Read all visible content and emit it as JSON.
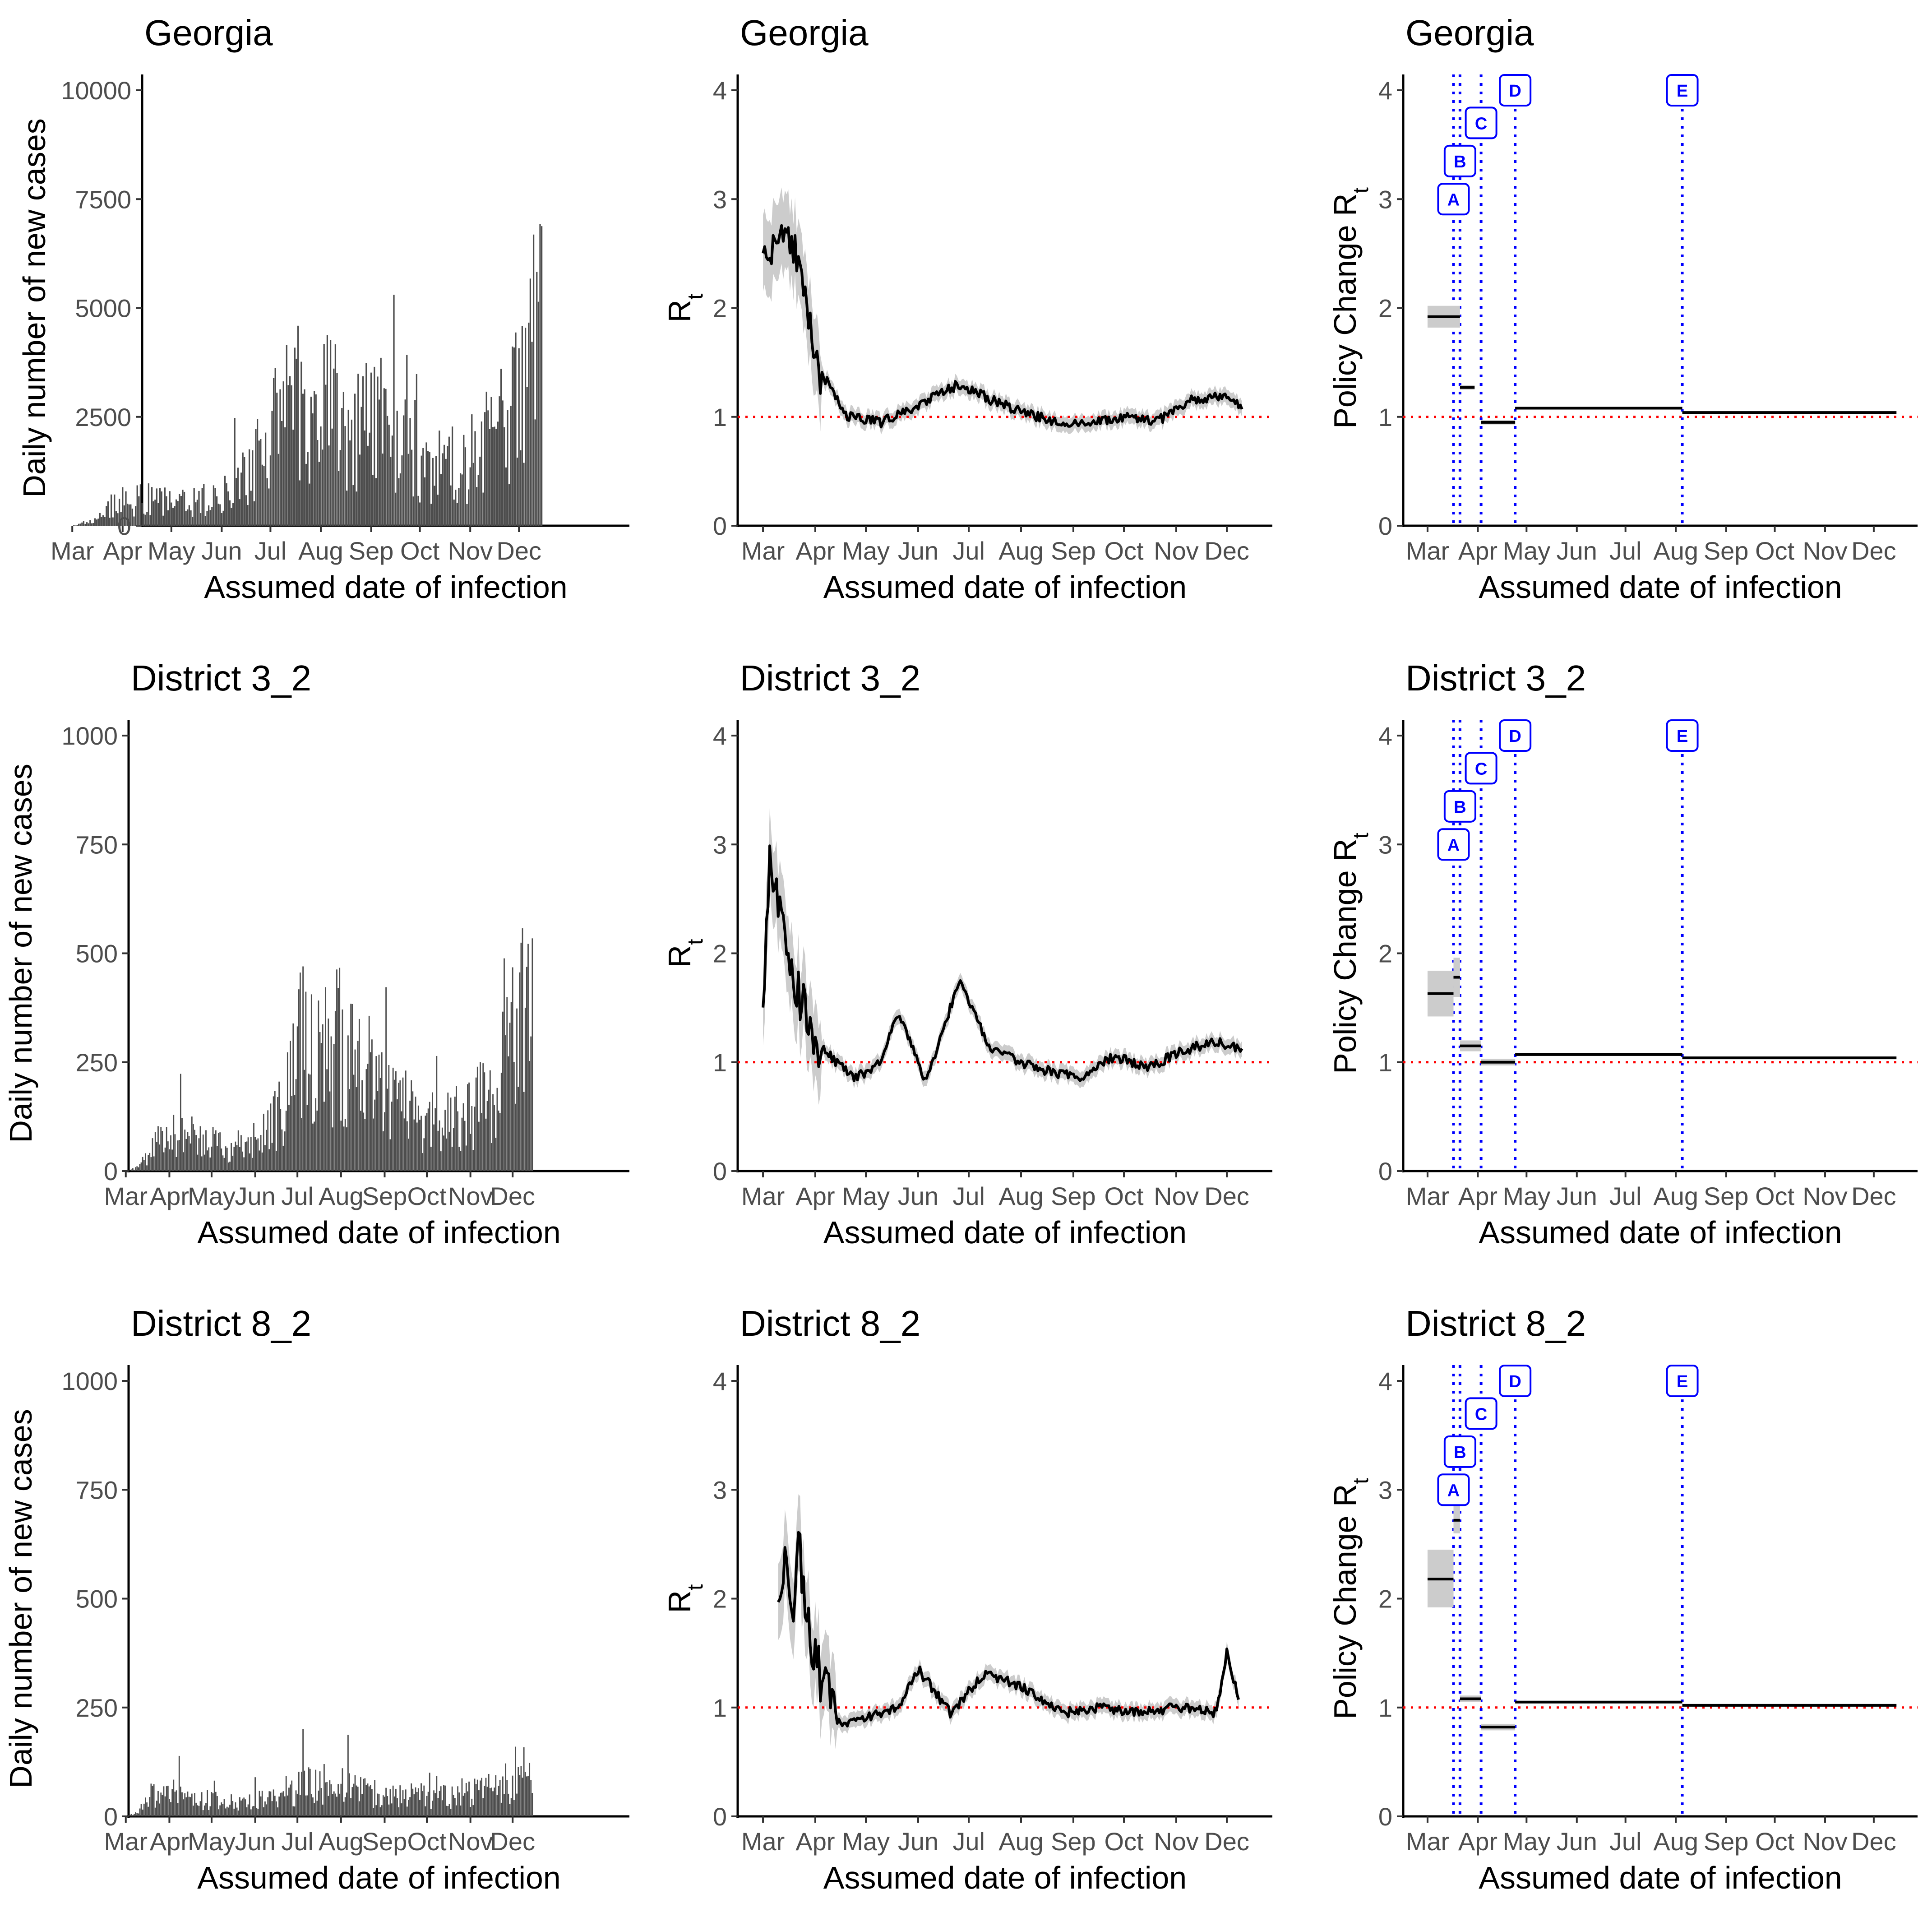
{
  "chart_data": [
    {
      "type": "bar",
      "title": "Georgia",
      "xlabel": "Assumed date of infection",
      "ylabel": "Daily number of new cases",
      "ylim": [
        0,
        10000
      ],
      "yticks": [
        "0",
        "2500",
        "5000",
        "7500",
        "10000"
      ],
      "month_ticks": [
        "Mar",
        "Apr",
        "May",
        "Jun",
        "Jul",
        "Aug",
        "Sep",
        "Oct",
        "Nov",
        "Dec"
      ],
      "series_envelope": {
        "x": [
          "Mar 1",
          "Mar 15",
          "Mar 25",
          "Apr 10",
          "May 1",
          "Jun 1",
          "Jun 20",
          "Jul 5",
          "Jul 25",
          "Aug 15",
          "Sep 15",
          "Oct 10",
          "Nov 1",
          "Nov 20",
          "Dec 5",
          "Dec 15"
        ],
        "values": [
          0,
          150,
          600,
          800,
          650,
          800,
          1800,
          3500,
          3800,
          3200,
          2500,
          1700,
          2000,
          2800,
          4500,
          6000
        ]
      }
    },
    {
      "type": "line",
      "title": "Georgia",
      "xlabel": "Assumed date of infection",
      "ylabel": "Rt",
      "ylim": [
        0,
        4
      ],
      "yticks": [
        "0",
        "1",
        "2",
        "3",
        "4"
      ],
      "month_ticks": [
        "Mar",
        "Apr",
        "May",
        "Jun",
        "Jul",
        "Aug",
        "Sep",
        "Oct",
        "Nov",
        "Dec"
      ],
      "reference_line": 1,
      "x": [
        "Mar 1",
        "Mar 8",
        "Mar 15",
        "Mar 25",
        "Apr 5",
        "Apr 20",
        "May 10",
        "Jun 1",
        "Jun 25",
        "Jul 15",
        "Aug 10",
        "Sep 5",
        "Oct 1",
        "Oct 20",
        "Nov 10",
        "Dec 1",
        "Dec 10"
      ],
      "values": [
        2.7,
        2.4,
        2.9,
        2.1,
        1.4,
        1.0,
        0.95,
        1.1,
        1.3,
        1.15,
        1.0,
        0.92,
        1.0,
        0.95,
        1.15,
        1.2,
        1.1
      ]
    },
    {
      "type": "line",
      "title": "Georgia",
      "xlabel": "Assumed date of infection",
      "ylabel": "Policy Change Rt",
      "ylim": [
        0,
        4
      ],
      "yticks": [
        "0",
        "1",
        "2",
        "3",
        "4"
      ],
      "month_ticks": [
        "Mar",
        "Apr",
        "May",
        "Jun",
        "Jul",
        "Aug",
        "Sep",
        "Oct",
        "Nov",
        "Dec"
      ],
      "reference_line": 1,
      "policy_labels": [
        "A",
        "B",
        "C",
        "D",
        "E"
      ],
      "policy_dates": [
        "Mar 17",
        "Mar 21",
        "Apr 3",
        "Apr 24",
        "Aug 5"
      ],
      "segments": [
        {
          "from": "Mar 1",
          "to": "Mar 21",
          "value": 1.92,
          "low": 1.82,
          "high": 2.02
        },
        {
          "from": "Mar 21",
          "to": "Mar 30",
          "value": 1.27,
          "low": 1.25,
          "high": 1.29
        },
        {
          "from": "Apr 3",
          "to": "Apr 24",
          "value": 0.95,
          "low": 0.93,
          "high": 0.97
        },
        {
          "from": "Apr 24",
          "to": "Aug 5",
          "value": 1.08,
          "low": 1.07,
          "high": 1.09
        },
        {
          "from": "Aug 5",
          "to": "Dec 15",
          "value": 1.04,
          "low": 1.03,
          "high": 1.05
        }
      ]
    },
    {
      "type": "bar",
      "title": "District 3_2",
      "xlabel": "Assumed date of infection",
      "ylabel": "Daily number of new cases",
      "ylim": [
        0,
        1000
      ],
      "yticks": [
        "0",
        "250",
        "500",
        "750",
        "1000"
      ],
      "month_ticks": [
        "Mar",
        "Apr",
        "May",
        "Jun",
        "Jul",
        "Aug",
        "Sep",
        "Oct",
        "Nov",
        "Dec"
      ],
      "series_envelope": {
        "x": [
          "Mar 1",
          "Mar 10",
          "Mar 25",
          "Apr 10",
          "May 1",
          "Jun 1",
          "Jun 20",
          "Jul 5",
          "Jul 25",
          "Aug 15",
          "Sep 15",
          "Oct 10",
          "Nov 1",
          "Nov 20",
          "Dec 5",
          "Dec 15"
        ],
        "values": [
          0,
          10,
          90,
          110,
          80,
          70,
          180,
          380,
          400,
          300,
          180,
          130,
          170,
          250,
          400,
          550
        ]
      }
    },
    {
      "type": "line",
      "title": "District 3_2",
      "xlabel": "Assumed date of infection",
      "ylabel": "Rt",
      "ylim": [
        0,
        4
      ],
      "yticks": [
        "0",
        "1",
        "2",
        "3",
        "4"
      ],
      "month_ticks": [
        "Mar",
        "Apr",
        "May",
        "Jun",
        "Jul",
        "Aug",
        "Sep",
        "Oct",
        "Nov",
        "Dec"
      ],
      "reference_line": 1,
      "x": [
        "Mar 1",
        "Mar 5",
        "Mar 10",
        "Mar 18",
        "Mar 28",
        "Apr 10",
        "Apr 25",
        "May 10",
        "May 20",
        "Jun 5",
        "Jun 12",
        "Jun 25",
        "Jul 15",
        "Aug 10",
        "Sep 5",
        "Sep 25",
        "Oct 15",
        "Nov 5",
        "Nov 25",
        "Dec 10"
      ],
      "values": [
        1.3,
        3.0,
        2.5,
        1.9,
        1.3,
        1.05,
        0.85,
        1.0,
        1.45,
        0.85,
        1.1,
        1.75,
        1.1,
        0.95,
        0.85,
        1.05,
        0.95,
        1.1,
        1.2,
        1.1
      ]
    },
    {
      "type": "line",
      "title": "District 3_2",
      "xlabel": "Assumed date of infection",
      "ylabel": "Policy Change Rt",
      "ylim": [
        0,
        4
      ],
      "yticks": [
        "0",
        "1",
        "2",
        "3",
        "4"
      ],
      "month_ticks": [
        "Mar",
        "Apr",
        "May",
        "Jun",
        "Jul",
        "Aug",
        "Sep",
        "Oct",
        "Nov",
        "Dec"
      ],
      "reference_line": 1,
      "policy_labels": [
        "A",
        "B",
        "C",
        "D",
        "E"
      ],
      "policy_dates": [
        "Mar 17",
        "Mar 21",
        "Apr 3",
        "Apr 24",
        "Aug 5"
      ],
      "segments": [
        {
          "from": "Mar 1",
          "to": "Mar 17",
          "value": 1.63,
          "low": 1.42,
          "high": 1.84
        },
        {
          "from": "Mar 17",
          "to": "Mar 21",
          "value": 1.78,
          "low": 1.6,
          "high": 1.96
        },
        {
          "from": "Mar 21",
          "to": "Apr 3",
          "value": 1.15,
          "low": 1.1,
          "high": 1.2
        },
        {
          "from": "Apr 3",
          "to": "Apr 24",
          "value": 1.0,
          "low": 0.97,
          "high": 1.03
        },
        {
          "from": "Apr 24",
          "to": "Aug 5",
          "value": 1.07,
          "low": 1.06,
          "high": 1.08
        },
        {
          "from": "Aug 5",
          "to": "Dec 15",
          "value": 1.04,
          "low": 1.03,
          "high": 1.05
        }
      ]
    },
    {
      "type": "bar",
      "title": "District 8_2",
      "xlabel": "Assumed date of infection",
      "ylabel": "Daily number of new cases",
      "ylim": [
        0,
        1000
      ],
      "yticks": [
        "0",
        "250",
        "500",
        "750",
        "1000"
      ],
      "month_ticks": [
        "Mar",
        "Apr",
        "May",
        "Jun",
        "Jul",
        "Aug",
        "Sep",
        "Oct",
        "Nov",
        "Dec"
      ],
      "series_envelope": {
        "x": [
          "Mar 1",
          "Mar 10",
          "Mar 20",
          "Mar 30",
          "Apr 15",
          "May 1",
          "Jun 1",
          "Jun 20",
          "Jul 10",
          "Jul 25",
          "Aug 15",
          "Sep 15",
          "Oct 10",
          "Nov 1",
          "Nov 20",
          "Dec 5",
          "Dec 15"
        ],
        "values": [
          0,
          10,
          70,
          100,
          60,
          50,
          45,
          60,
          110,
          100,
          80,
          60,
          55,
          65,
          80,
          130,
          150
        ]
      }
    },
    {
      "type": "line",
      "title": "District 8_2",
      "xlabel": "Assumed date of infection",
      "ylabel": "Rt",
      "ylim": [
        0,
        4
      ],
      "yticks": [
        "0",
        "1",
        "2",
        "3",
        "4"
      ],
      "month_ticks": [
        "Mar",
        "Apr",
        "May",
        "Jun",
        "Jul",
        "Aug",
        "Sep",
        "Oct",
        "Nov",
        "Dec"
      ],
      "reference_line": 1,
      "x": [
        "Mar 10",
        "Mar 14",
        "Mar 18",
        "Mar 22",
        "Apr 1",
        "Apr 15",
        "May 1",
        "May 20",
        "Jun 1",
        "Jun 20",
        "Jul 10",
        "Aug 1",
        "Aug 25",
        "Sep 20",
        "Oct 10",
        "Nov 1",
        "Nov 25",
        "Dec 1",
        "Dec 8"
      ],
      "values": [
        2.0,
        2.4,
        1.7,
        2.5,
        1.4,
        0.85,
        0.9,
        1.0,
        1.35,
        0.95,
        1.3,
        1.2,
        0.95,
        1.0,
        0.95,
        1.0,
        0.95,
        1.5,
        1.1
      ]
    },
    {
      "type": "line",
      "title": "District 8_2",
      "xlabel": "Assumed date of infection",
      "ylabel": "Policy Change Rt",
      "ylim": [
        0,
        4
      ],
      "yticks": [
        "0",
        "1",
        "2",
        "3",
        "4"
      ],
      "month_ticks": [
        "Mar",
        "Apr",
        "May",
        "Jun",
        "Jul",
        "Aug",
        "Sep",
        "Oct",
        "Nov",
        "Dec"
      ],
      "reference_line": 1,
      "policy_labels": [
        "A",
        "B",
        "C",
        "D",
        "E"
      ],
      "policy_dates": [
        "Mar 17",
        "Mar 21",
        "Apr 3",
        "Apr 24",
        "Aug 5"
      ],
      "segments": [
        {
          "from": "Mar 1",
          "to": "Mar 17",
          "value": 2.18,
          "low": 1.92,
          "high": 2.45
        },
        {
          "from": "Mar 17",
          "to": "Mar 21",
          "value": 2.72,
          "low": 2.6,
          "high": 2.85
        },
        {
          "from": "Mar 21",
          "to": "Apr 3",
          "value": 1.08,
          "low": 1.05,
          "high": 1.11
        },
        {
          "from": "Apr 3",
          "to": "Apr 24",
          "value": 0.82,
          "low": 0.79,
          "high": 0.85
        },
        {
          "from": "Apr 24",
          "to": "Aug 5",
          "value": 1.05,
          "low": 1.04,
          "high": 1.06
        },
        {
          "from": "Aug 5",
          "to": "Dec 15",
          "value": 1.02,
          "low": 1.01,
          "high": 1.03
        }
      ]
    }
  ]
}
